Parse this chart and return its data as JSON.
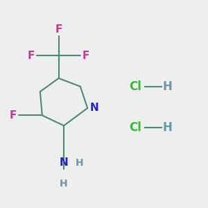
{
  "background_color": "#eeeeee",
  "bond_color": "#4a8878",
  "N_color": "#2222cc",
  "F_color": "#cc3399",
  "Cl_color": "#33bb33",
  "H_color": "#6699aa",
  "line_width": 1.5,
  "figsize": [
    3.0,
    3.0
  ],
  "dpi": 100,
  "xlim": [
    0,
    10
  ],
  "ylim": [
    0,
    10
  ]
}
